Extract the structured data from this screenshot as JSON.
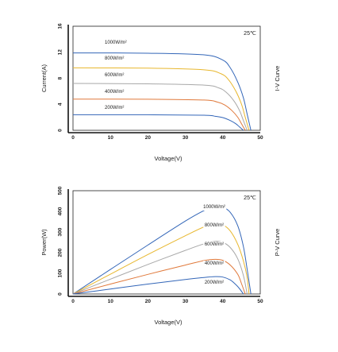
{
  "chart_data": [
    {
      "type": "line",
      "xlabel": "Voltage(V)",
      "ylabel": "Current(A)",
      "side_label": "I-V Curve",
      "temperature_label": "25℃",
      "xlim": [
        0,
        50
      ],
      "ylim": [
        0,
        16
      ],
      "xticks": [
        "0",
        "10",
        "20",
        "30",
        "40",
        "50"
      ],
      "yticks": [
        "0",
        "4",
        "8",
        "12",
        "16"
      ],
      "grid": false,
      "series": [
        {
          "name": "1000W/m²",
          "color": "#3366b8",
          "x": [
            0,
            20,
            35,
            40,
            42,
            44,
            45.5,
            46.5,
            47.5
          ],
          "y": [
            11.9,
            11.85,
            11.6,
            10.8,
            9.6,
            7.4,
            5.0,
            2.5,
            0
          ]
        },
        {
          "name": "800W/m²",
          "color": "#e8b72e",
          "x": [
            0,
            20,
            35,
            39.5,
            41.5,
            43.5,
            45,
            46,
            47
          ],
          "y": [
            9.6,
            9.55,
            9.3,
            8.7,
            7.8,
            6.0,
            4.0,
            2.0,
            0
          ]
        },
        {
          "name": "600W/m²",
          "color": "#a8a8a8",
          "x": [
            0,
            20,
            35,
            39,
            41,
            43,
            44.5,
            45.5,
            46.5
          ],
          "y": [
            7.2,
            7.15,
            6.95,
            6.5,
            5.8,
            4.5,
            3.0,
            1.5,
            0
          ]
        },
        {
          "name": "400W/m²",
          "color": "#e0793b",
          "x": [
            0,
            20,
            35,
            38.5,
            40.5,
            42.5,
            44,
            45,
            46
          ],
          "y": [
            4.8,
            4.78,
            4.65,
            4.35,
            3.9,
            3.0,
            2.0,
            1.0,
            0
          ]
        },
        {
          "name": "200W/m²",
          "color": "#3366b8",
          "x": [
            0,
            20,
            35,
            38,
            40,
            42,
            43.5,
            44.5,
            45.5
          ],
          "y": [
            2.4,
            2.39,
            2.32,
            2.15,
            1.95,
            1.5,
            1.0,
            0.5,
            0
          ]
        }
      ]
    },
    {
      "type": "line",
      "xlabel": "Voltage(V)",
      "ylabel": "Power(W)",
      "side_label": "P-V Curve",
      "temperature_label": "25℃",
      "xlim": [
        0,
        50
      ],
      "ylim": [
        0,
        500
      ],
      "xticks": [
        "0",
        "10",
        "20",
        "30",
        "40",
        "50"
      ],
      "yticks": [
        "0",
        "100",
        "200",
        "300",
        "400",
        "500"
      ],
      "grid": false,
      "series": [
        {
          "name": "1000W/m²",
          "color": "#3366b8",
          "x": [
            0,
            10,
            20,
            30,
            35,
            38,
            40,
            42,
            44,
            45.5,
            46.5,
            47.5
          ],
          "y": [
            0,
            119,
            237,
            353,
            404,
            425,
            420,
            395,
            330,
            230,
            120,
            0
          ]
        },
        {
          "name": "800W/m²",
          "color": "#e8b72e",
          "x": [
            0,
            10,
            20,
            30,
            35,
            38,
            40,
            42,
            44,
            45.5,
            46.5,
            47
          ],
          "y": [
            0,
            96,
            191,
            282,
            325,
            340,
            335,
            305,
            240,
            160,
            80,
            0
          ]
        },
        {
          "name": "600W/m²",
          "color": "#a8a8a8",
          "x": [
            0,
            10,
            20,
            30,
            35,
            38,
            40,
            42,
            44,
            45.5,
            46.5
          ],
          "y": [
            0,
            72,
            143,
            211,
            243,
            255,
            250,
            225,
            170,
            90,
            0
          ]
        },
        {
          "name": "400W/m²",
          "color": "#e0793b",
          "x": [
            0,
            10,
            20,
            30,
            35,
            38,
            40,
            42,
            44,
            45,
            46
          ],
          "y": [
            0,
            48,
            95,
            140,
            162,
            168,
            163,
            140,
            95,
            50,
            0
          ]
        },
        {
          "name": "200W/m²",
          "color": "#3366b8",
          "x": [
            0,
            10,
            20,
            30,
            35,
            38,
            40,
            42,
            43.5,
            44.5,
            45.5
          ],
          "y": [
            0,
            24,
            48,
            70,
            80,
            84,
            82,
            68,
            45,
            25,
            0
          ]
        }
      ]
    }
  ]
}
